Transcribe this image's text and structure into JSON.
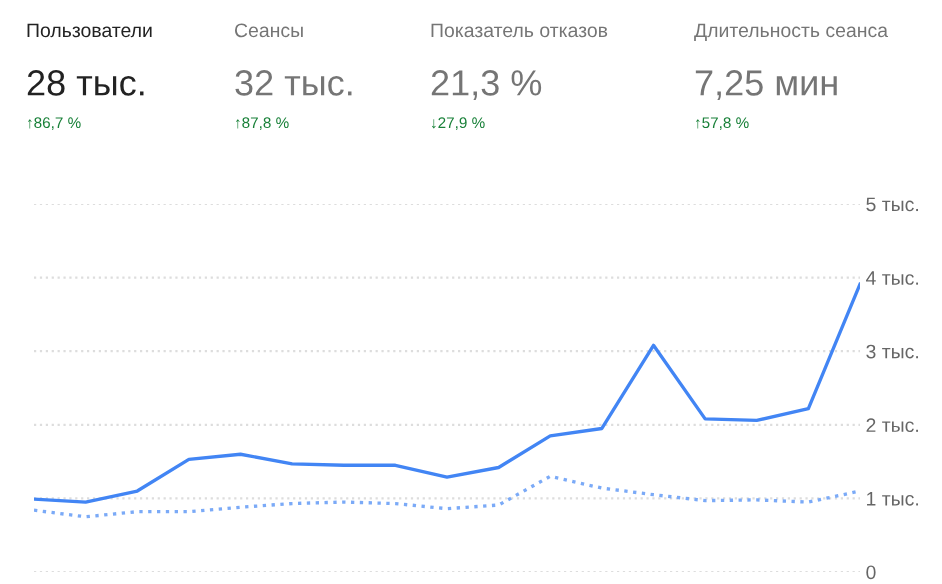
{
  "chart_data": [
    {
      "type": "other",
      "annotations": [
        "Пользователи",
        "28 тыс.",
        "↑86,7 %",
        "Сеансы",
        "32 тыс.",
        "↑87,8 %",
        "Показатель отказов",
        "21,3 %",
        "↓27,9 %",
        "Длительность сеанса",
        "7,25 мин",
        "↑57,8 %"
      ]
    },
    {
      "type": "line",
      "categories": [
        null,
        null,
        null,
        null,
        null,
        null,
        null,
        null,
        null,
        null,
        null,
        null,
        null,
        null,
        null,
        null,
        null
      ],
      "series": [
        {
          "color": "#4285f4",
          "line_style": "solid",
          "values": [
            0.99,
            0.95,
            1.1,
            1.53,
            1.6,
            1.47,
            1.45,
            1.45,
            1.29,
            1.42,
            1.85,
            1.95,
            3.08,
            2.08,
            2.06,
            2.22,
            3.91
          ]
        },
        {
          "color": "#7baaf7",
          "line_style": "dotted",
          "values": [
            0.84,
            0.75,
            0.82,
            0.82,
            0.88,
            0.93,
            0.95,
            0.93,
            0.86,
            0.91,
            1.3,
            1.14,
            1.05,
            0.97,
            0.98,
            0.95,
            1.1
          ]
        }
      ],
      "ylim": [
        0,
        5
      ],
      "yticks": [
        0,
        {
          "value": 1,
          "label": "1 тыс."
        },
        {
          "value": 2,
          "label": "2 тыс."
        },
        {
          "value": 3,
          "label": "3 тыс."
        },
        {
          "value": 4,
          "label": "4 тыс."
        },
        {
          "value": 5,
          "label": "5 тыс."
        }
      ],
      "grid": "y",
      "legend": false,
      "tick_labels": "y"
    }
  ]
}
